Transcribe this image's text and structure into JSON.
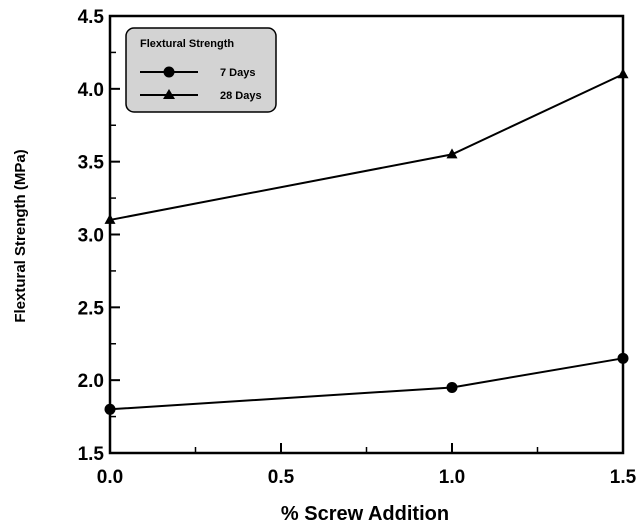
{
  "chart_data": {
    "type": "line",
    "xlabel": "% Screw Addition",
    "ylabel": "Flextural Strength (MPa)",
    "xlim": [
      0.0,
      1.5
    ],
    "ylim": [
      1.5,
      4.5
    ],
    "x_ticks": [
      "0.0",
      "0.5",
      "1.0",
      "1.5"
    ],
    "y_ticks": [
      "1.5",
      "2.0",
      "2.5",
      "3.0",
      "3.5",
      "4.0",
      "4.5"
    ],
    "grid": false,
    "legend": {
      "title": "Flextural Strength",
      "placement": "top-left"
    },
    "x": [
      0.0,
      1.0,
      1.5
    ],
    "series": [
      {
        "name": "7 Days",
        "marker": "circle",
        "values": [
          1.8,
          1.95,
          2.15
        ]
      },
      {
        "name": "28 Days",
        "marker": "triangle",
        "values": [
          3.1,
          3.55,
          4.1
        ]
      }
    ],
    "colors": {
      "line": "#000000",
      "legend_bg": "#d3d3d3",
      "background": "#ffffff"
    }
  }
}
